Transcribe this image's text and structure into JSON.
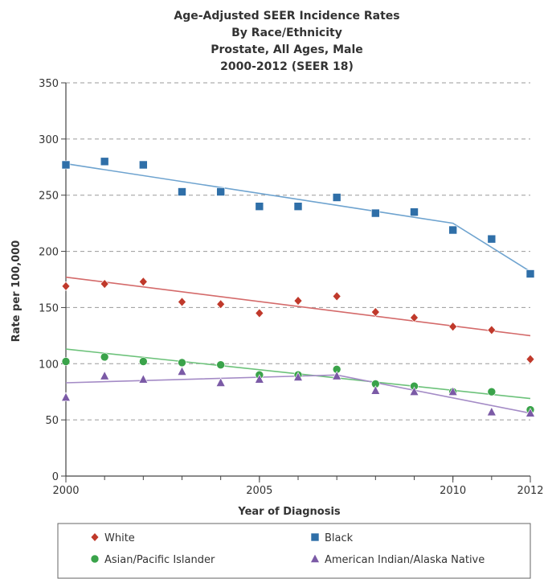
{
  "chart_data": {
    "type": "scatter",
    "title_lines": [
      "Age-Adjusted SEER Incidence Rates",
      "By Race/Ethnicity",
      "Prostate, All Ages, Male",
      "2000-2012  (SEER 18)"
    ],
    "xlabel": "Year of Diagnosis",
    "ylabel": "Rate per 100,000",
    "xlim": [
      2000,
      2012
    ],
    "ylim": [
      0,
      350
    ],
    "x_ticks": [
      2000,
      2005,
      2010,
      2012
    ],
    "y_ticks": [
      0,
      50,
      100,
      150,
      200,
      250,
      300,
      350
    ],
    "grid": "horizontal-dashed",
    "legend_position": "bottom",
    "x": [
      2000,
      2001,
      2002,
      2003,
      2004,
      2005,
      2006,
      2007,
      2008,
      2009,
      2010,
      2011,
      2012
    ],
    "series": [
      {
        "name": "White",
        "marker": "diamond",
        "color": "#c0392b",
        "line_color": "#d46a6a",
        "values": [
          169,
          171,
          173,
          155,
          153,
          145,
          156,
          160,
          146,
          141,
          133,
          130,
          104
        ],
        "trend": [
          [
            2000,
            177
          ],
          [
            2012,
            125
          ]
        ]
      },
      {
        "name": "Black",
        "marker": "square",
        "color": "#2f6fa8",
        "line_color": "#6ea3cf",
        "values": [
          277,
          280,
          277,
          253,
          253,
          240,
          240,
          248,
          234,
          235,
          219,
          211,
          180
        ],
        "trend": [
          [
            2000,
            278
          ],
          [
            2007,
            241
          ],
          [
            2010,
            225
          ],
          [
            2012,
            182
          ]
        ]
      },
      {
        "name": "Asian/Pacific Islander",
        "marker": "circle",
        "color": "#3aa34a",
        "line_color": "#6cc27a",
        "values": [
          102,
          106,
          102,
          101,
          99,
          90,
          90,
          95,
          82,
          80,
          75,
          75,
          59
        ],
        "trend": [
          [
            2000,
            113
          ],
          [
            2012,
            69
          ]
        ]
      },
      {
        "name": "American Indian/Alaska Native",
        "marker": "triangle",
        "color": "#7b5aa6",
        "line_color": "#a48bc6",
        "values": [
          70,
          89,
          86,
          93,
          83,
          86,
          88,
          89,
          76,
          75,
          75,
          57,
          56
        ],
        "trend": [
          [
            2000,
            83
          ],
          [
            2007,
            90
          ],
          [
            2012,
            56
          ]
        ]
      }
    ]
  }
}
